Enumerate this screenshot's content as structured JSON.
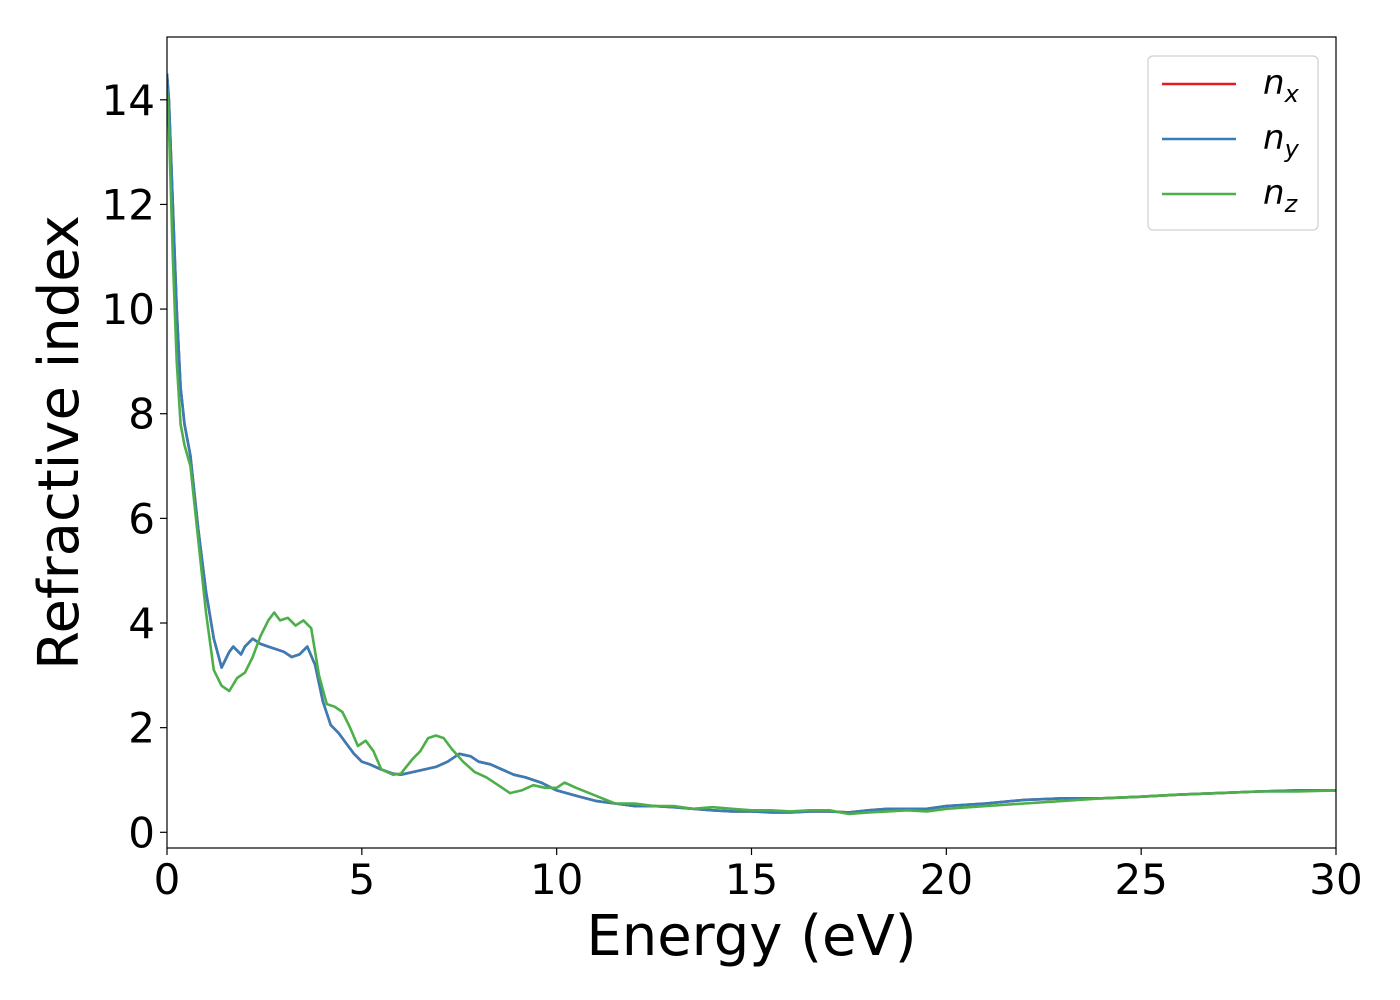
{
  "chart_data": {
    "type": "line",
    "title": "",
    "xlabel": "Energy (eV)",
    "ylabel": "Refractive index",
    "xlim": [
      0,
      30
    ],
    "ylim": [
      -0.3,
      15.2
    ],
    "xticks": [
      0,
      5,
      10,
      15,
      20,
      25,
      30
    ],
    "yticks": [
      0,
      2,
      4,
      6,
      8,
      10,
      12,
      14
    ],
    "grid": false,
    "legend": "top-right",
    "series": [
      {
        "name": "n",
        "sub": "x",
        "color": "#e41a1c",
        "x": [
          0.0,
          0.05,
          0.15,
          0.25,
          0.35,
          0.45,
          0.6,
          0.8,
          1.0,
          1.2,
          1.4,
          1.6,
          1.7,
          1.9,
          2.0,
          2.2,
          2.4,
          2.6,
          2.8,
          3.0,
          3.2,
          3.4,
          3.6,
          3.8,
          4.0,
          4.2,
          4.4,
          4.6,
          4.8,
          5.0,
          5.2,
          5.5,
          5.8,
          6.0,
          6.3,
          6.6,
          6.9,
          7.2,
          7.5,
          7.8,
          8.0,
          8.3,
          8.6,
          8.9,
          9.2,
          9.6,
          10.0,
          10.5,
          11.0,
          11.5,
          12.0,
          12.5,
          13.0,
          13.5,
          14.0,
          14.5,
          15.0,
          15.5,
          16.0,
          16.5,
          17.0,
          17.5,
          18.0,
          18.5,
          19.0,
          19.5,
          20.0,
          21.0,
          22.0,
          23.0,
          24.0,
          25.0,
          26.0,
          27.0,
          28.0,
          29.0,
          30.0
        ],
        "y": [
          14.5,
          14.0,
          12.0,
          10.0,
          8.5,
          7.8,
          7.2,
          5.8,
          4.6,
          3.7,
          3.15,
          3.45,
          3.55,
          3.4,
          3.55,
          3.7,
          3.6,
          3.55,
          3.5,
          3.45,
          3.35,
          3.4,
          3.55,
          3.2,
          2.5,
          2.05,
          1.9,
          1.7,
          1.5,
          1.35,
          1.3,
          1.2,
          1.12,
          1.1,
          1.15,
          1.2,
          1.25,
          1.35,
          1.5,
          1.45,
          1.35,
          1.3,
          1.2,
          1.1,
          1.05,
          0.95,
          0.8,
          0.7,
          0.6,
          0.55,
          0.5,
          0.5,
          0.48,
          0.45,
          0.42,
          0.4,
          0.4,
          0.38,
          0.38,
          0.4,
          0.4,
          0.38,
          0.42,
          0.45,
          0.45,
          0.45,
          0.5,
          0.55,
          0.62,
          0.65,
          0.65,
          0.68,
          0.72,
          0.75,
          0.78,
          0.8,
          0.8
        ]
      },
      {
        "name": "n",
        "sub": "y",
        "color": "#377eb8",
        "x": [
          0.0,
          0.05,
          0.15,
          0.25,
          0.35,
          0.45,
          0.6,
          0.8,
          1.0,
          1.2,
          1.4,
          1.6,
          1.7,
          1.9,
          2.0,
          2.2,
          2.4,
          2.6,
          2.8,
          3.0,
          3.2,
          3.4,
          3.6,
          3.8,
          4.0,
          4.2,
          4.4,
          4.6,
          4.8,
          5.0,
          5.2,
          5.5,
          5.8,
          6.0,
          6.3,
          6.6,
          6.9,
          7.2,
          7.5,
          7.8,
          8.0,
          8.3,
          8.6,
          8.9,
          9.2,
          9.6,
          10.0,
          10.5,
          11.0,
          11.5,
          12.0,
          12.5,
          13.0,
          13.5,
          14.0,
          14.5,
          15.0,
          15.5,
          16.0,
          16.5,
          17.0,
          17.5,
          18.0,
          18.5,
          19.0,
          19.5,
          20.0,
          21.0,
          22.0,
          23.0,
          24.0,
          25.0,
          26.0,
          27.0,
          28.0,
          29.0,
          30.0
        ],
        "y": [
          14.5,
          14.0,
          12.0,
          10.0,
          8.5,
          7.8,
          7.2,
          5.8,
          4.6,
          3.7,
          3.15,
          3.45,
          3.55,
          3.4,
          3.55,
          3.7,
          3.6,
          3.55,
          3.5,
          3.45,
          3.35,
          3.4,
          3.55,
          3.2,
          2.5,
          2.05,
          1.9,
          1.7,
          1.5,
          1.35,
          1.3,
          1.2,
          1.12,
          1.1,
          1.15,
          1.2,
          1.25,
          1.35,
          1.5,
          1.45,
          1.35,
          1.3,
          1.2,
          1.1,
          1.05,
          0.95,
          0.8,
          0.7,
          0.6,
          0.55,
          0.5,
          0.5,
          0.48,
          0.45,
          0.42,
          0.4,
          0.4,
          0.38,
          0.38,
          0.4,
          0.4,
          0.38,
          0.42,
          0.45,
          0.45,
          0.45,
          0.5,
          0.55,
          0.62,
          0.65,
          0.65,
          0.68,
          0.72,
          0.75,
          0.78,
          0.8,
          0.8
        ]
      },
      {
        "name": "n",
        "sub": "z",
        "color": "#4daf4a",
        "x": [
          0.0,
          0.05,
          0.15,
          0.25,
          0.35,
          0.45,
          0.6,
          0.8,
          1.0,
          1.2,
          1.4,
          1.6,
          1.8,
          2.0,
          2.2,
          2.4,
          2.6,
          2.75,
          2.9,
          3.1,
          3.3,
          3.5,
          3.7,
          3.9,
          4.1,
          4.3,
          4.5,
          4.7,
          4.9,
          5.1,
          5.3,
          5.5,
          5.8,
          6.0,
          6.3,
          6.5,
          6.7,
          6.9,
          7.1,
          7.3,
          7.6,
          7.9,
          8.2,
          8.5,
          8.8,
          9.1,
          9.4,
          9.7,
          10.0,
          10.2,
          10.5,
          11.0,
          11.5,
          12.0,
          12.5,
          13.0,
          13.5,
          14.0,
          14.5,
          15.0,
          15.5,
          16.0,
          16.5,
          17.0,
          17.5,
          18.0,
          18.5,
          19.0,
          19.5,
          20.0,
          21.0,
          22.0,
          23.0,
          24.0,
          25.0,
          26.0,
          27.0,
          28.0,
          29.0,
          30.0
        ],
        "y": [
          14.2,
          13.5,
          11.0,
          9.0,
          7.8,
          7.4,
          7.0,
          5.6,
          4.2,
          3.1,
          2.8,
          2.7,
          2.95,
          3.05,
          3.35,
          3.75,
          4.05,
          4.2,
          4.05,
          4.1,
          3.95,
          4.05,
          3.9,
          3.0,
          2.45,
          2.4,
          2.3,
          2.0,
          1.65,
          1.75,
          1.55,
          1.2,
          1.1,
          1.12,
          1.4,
          1.55,
          1.8,
          1.85,
          1.8,
          1.6,
          1.35,
          1.15,
          1.05,
          0.9,
          0.75,
          0.8,
          0.9,
          0.85,
          0.85,
          0.95,
          0.85,
          0.7,
          0.55,
          0.55,
          0.5,
          0.5,
          0.45,
          0.48,
          0.45,
          0.42,
          0.42,
          0.4,
          0.42,
          0.42,
          0.35,
          0.38,
          0.4,
          0.42,
          0.4,
          0.45,
          0.5,
          0.55,
          0.6,
          0.65,
          0.68,
          0.72,
          0.75,
          0.78,
          0.78,
          0.8
        ]
      }
    ]
  }
}
